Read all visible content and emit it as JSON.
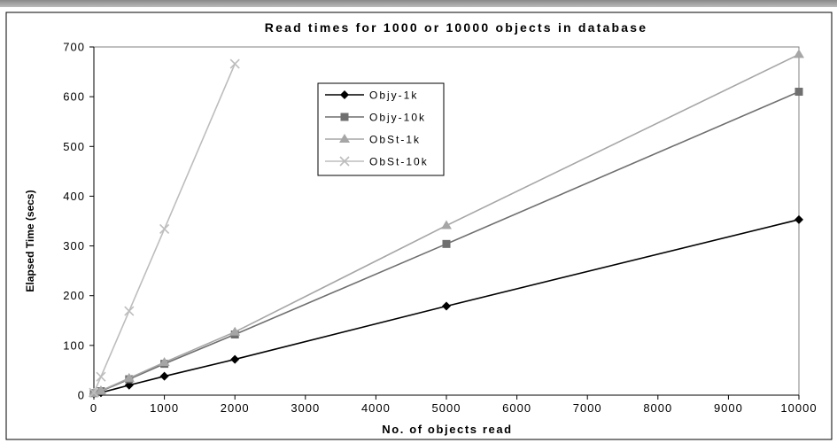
{
  "chart_data": {
    "type": "line",
    "title": "Read times for 1000 or 10000 objects in database",
    "xlabel": "No. of objects read",
    "ylabel": "Elapsed Time (secs)",
    "xlim": [
      0,
      10000
    ],
    "ylim": [
      0,
      700
    ],
    "xticks": [
      0,
      1000,
      2000,
      3000,
      4000,
      5000,
      6000,
      7000,
      8000,
      9000,
      10000
    ],
    "yticks": [
      0,
      100,
      200,
      300,
      400,
      500,
      600,
      700
    ],
    "grid": false,
    "legend_position": "upper-middle",
    "series": [
      {
        "name": "Objy-1k",
        "marker": "diamond",
        "color": "#000000",
        "x": [
          0,
          100,
          500,
          1000,
          2000,
          5000,
          10000
        ],
        "y": [
          3,
          5,
          20,
          38,
          72,
          179,
          353
        ]
      },
      {
        "name": "Objy-10k",
        "marker": "square",
        "color": "#6f6f6f",
        "x": [
          0,
          100,
          500,
          1000,
          2000,
          5000,
          10000
        ],
        "y": [
          4,
          8,
          32,
          63,
          122,
          304,
          610
        ]
      },
      {
        "name": "ObSt-1k",
        "marker": "triangle",
        "color": "#a6a6a6",
        "x": [
          0,
          100,
          500,
          1000,
          2000,
          5000,
          10000
        ],
        "y": [
          4,
          9,
          34,
          66,
          127,
          341,
          685
        ]
      },
      {
        "name": "ObSt-10k",
        "marker": "x",
        "color": "#bdbdbd",
        "x": [
          0,
          100,
          500,
          1000,
          2000
        ],
        "y": [
          5,
          37,
          169,
          334,
          666
        ]
      }
    ]
  }
}
